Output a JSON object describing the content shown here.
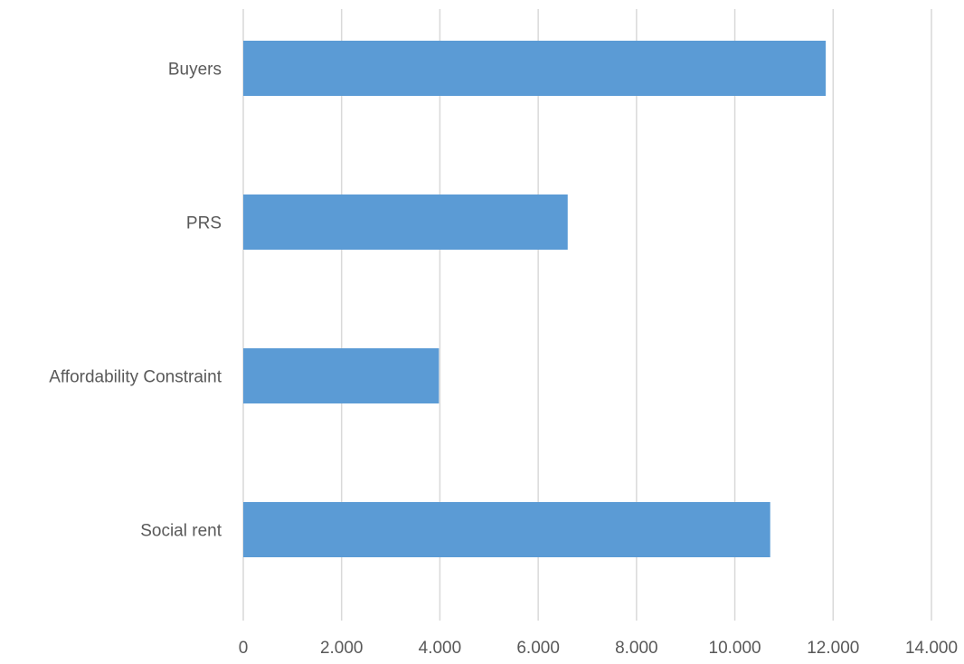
{
  "chart_data": {
    "type": "bar",
    "orientation": "horizontal",
    "categories": [
      "Buyers",
      "PRS",
      "Affordability Constraint",
      "Social rent"
    ],
    "values": [
      11850,
      6600,
      3980,
      10720
    ],
    "xlim": [
      0,
      14000
    ],
    "x_ticks": [
      0,
      2000,
      4000,
      6000,
      8000,
      10000,
      12000,
      14000
    ],
    "x_tick_labels": [
      "0",
      "2.000",
      "4.000",
      "6.000",
      "8.000",
      "10.000",
      "12.000",
      "14.000"
    ],
    "title": "",
    "xlabel": "",
    "ylabel": "",
    "grid": "vertical",
    "legend": "none",
    "bar_color": "#5b9bd5",
    "grid_color": "#d9d9d9",
    "label_color": "#595959"
  }
}
